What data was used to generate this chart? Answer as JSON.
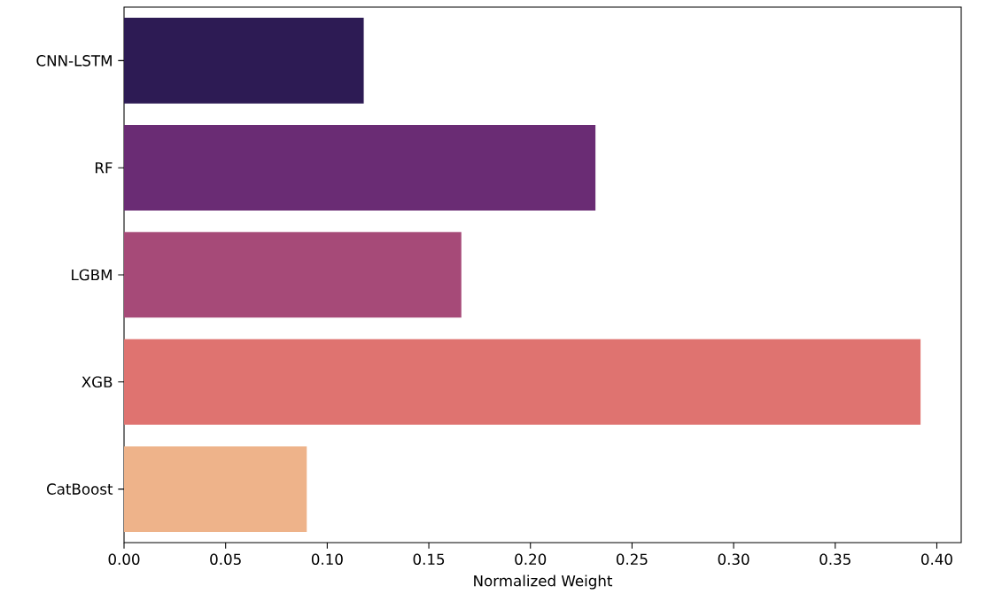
{
  "chart_data": {
    "type": "bar",
    "orientation": "horizontal",
    "xlabel": "Normalized Weight",
    "categories": [
      "CNN-LSTM",
      "RF",
      "LGBM",
      "XGB",
      "CatBoost"
    ],
    "values": [
      0.118,
      0.232,
      0.166,
      0.392,
      0.09
    ],
    "colors": [
      "#2d1b54",
      "#6a2c74",
      "#a64a78",
      "#df7370",
      "#eeb38a"
    ],
    "xlim": [
      0,
      0.412
    ],
    "xticks": [
      {
        "value": 0,
        "label": "0.00"
      },
      0.05,
      {
        "value": 0.1,
        "label": "0.10"
      },
      0.15,
      {
        "value": 0.2,
        "label": "0.20"
      },
      0.25,
      {
        "value": 0.3,
        "label": "0.30"
      },
      0.35,
      {
        "value": 0.4,
        "label": "0.40"
      }
    ],
    "grid": false
  }
}
